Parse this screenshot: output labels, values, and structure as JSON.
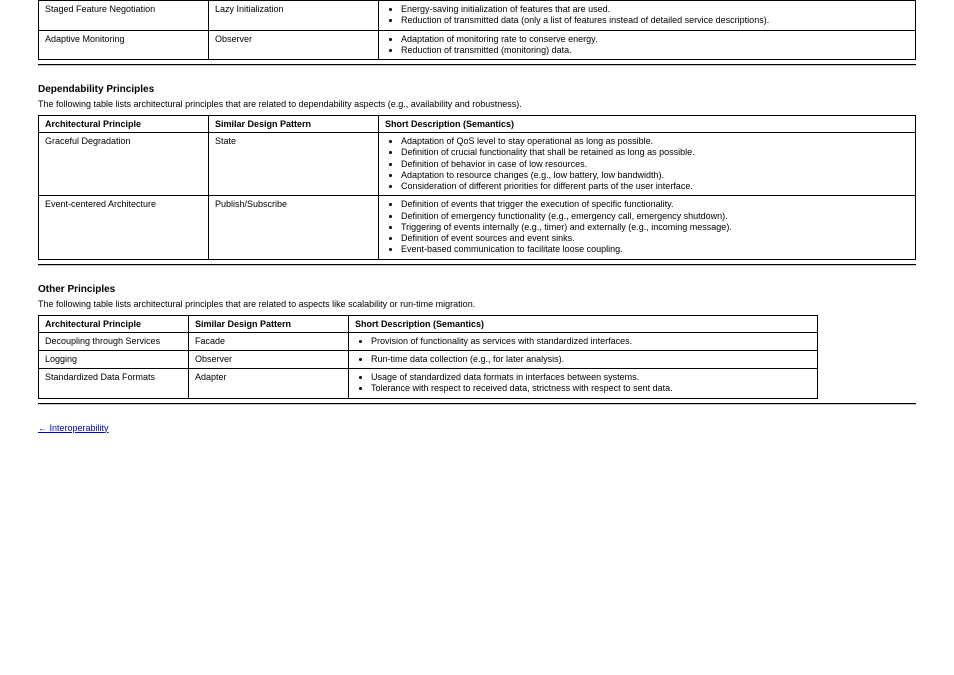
{
  "tables": {
    "energy": {
      "rows": [
        {
          "principle": "Staged Feature Negotiation",
          "pattern": "Lazy Initialization",
          "bullets": [
            "Energy-saving initialization of features that are used.",
            "Reduction of transmitted data (only a list of features instead of detailed service descriptions)."
          ]
        },
        {
          "principle": "Adaptive Monitoring",
          "pattern": "Observer",
          "bullets": [
            "Adaptation of monitoring rate to conserve energy.",
            "Reduction of transmitted (monitoring) data."
          ]
        }
      ]
    },
    "depend": {
      "title": "Dependability Principles",
      "lead": "The following table lists architectural principles that are related to dependability aspects (e.g., availability and robustness).",
      "headers": [
        "Architectural Principle",
        "Similar Design Pattern",
        "Short Description (Semantics)"
      ],
      "rows": [
        {
          "principle": "Graceful Degradation",
          "pattern": "State",
          "bullets": [
            "Adaptation of QoS level to stay operational as long as possible.",
            "Definition of crucial functionality that shall be retained as long as possible.",
            "Definition of behavior in case of low resources.",
            "Adaptation to resource changes (e.g., low battery, low bandwidth).",
            "Consideration of different priorities for different parts of the user interface."
          ]
        },
        {
          "principle": "Event-centered Architecture",
          "pattern": "Publish/Subscribe",
          "bullets": [
            "Definition of events that trigger the execution of specific functionality.",
            "Definition of emergency functionality (e.g., emergency call, emergency shutdown).",
            "Triggering of events internally (e.g., timer) and externally (e.g., incoming message).",
            "Definition of event sources and event sinks.",
            "Event-based communication to facilitate loose coupling."
          ]
        }
      ]
    },
    "other": {
      "title": "Other Principles",
      "lead": "The following table lists architectural principles that are related to aspects like scalability or run-time migration.",
      "headers": [
        "Architectural Principle",
        "Similar Design Pattern",
        "Short Description (Semantics)"
      ],
      "rows": [
        {
          "principle": "Decoupling through Services",
          "pattern": "Facade",
          "bullets": [
            "Provision of functionality as services with standardized interfaces."
          ]
        },
        {
          "principle": "Logging",
          "pattern": "Observer",
          "bullets": [
            "Run-time data collection (e.g., for later analysis)."
          ]
        },
        {
          "principle": "Standardized Data Formats",
          "pattern": "Adapter",
          "bullets": [
            "Usage of standardized data formats in interfaces between systems.",
            "Tolerance with respect to received data, strictness with respect to sent data."
          ]
        }
      ]
    }
  },
  "link": {
    "text": "← Interoperability",
    "href": "#"
  }
}
